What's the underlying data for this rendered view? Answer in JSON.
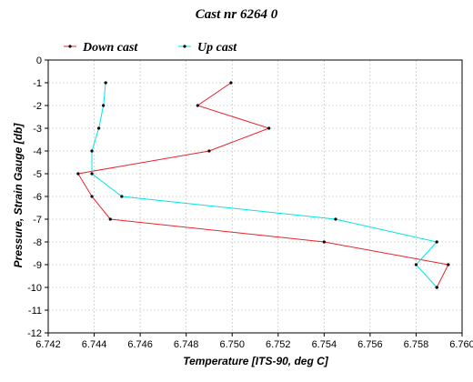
{
  "chart_data": {
    "type": "line",
    "title": "Cast nr 6264 0",
    "xlabel": "Temperature [ITS-90, deg C]",
    "ylabel": "Pressure, Strain Gauge [db]",
    "xlim": [
      6.742,
      6.76
    ],
    "ylim": [
      -12,
      0
    ],
    "x_ticks": [
      "6.742",
      "6.744",
      "6.746",
      "6.748",
      "6.750",
      "6.752",
      "6.754",
      "6.756",
      "6.758",
      "6.760"
    ],
    "y_ticks": [
      "0",
      "-1",
      "-2",
      "-3",
      "-4",
      "-5",
      "-6",
      "-7",
      "-8",
      "-9",
      "-10",
      "-11",
      "-12"
    ],
    "legend_position": "top-left",
    "grid": true,
    "series": [
      {
        "name": "Down cast",
        "color": "#e8232b",
        "points": [
          [
            6.74995,
            -1
          ],
          [
            6.7485,
            -2
          ],
          [
            6.7516,
            -3
          ],
          [
            6.749,
            -4
          ],
          [
            6.7433,
            -5
          ],
          [
            6.7439,
            -6
          ],
          [
            6.7447,
            -7
          ],
          [
            6.754,
            -8
          ],
          [
            6.7594,
            -9
          ],
          [
            6.7589,
            -10
          ]
        ]
      },
      {
        "name": "Up cast",
        "color": "#00e5e5",
        "points": [
          [
            6.7445,
            -1
          ],
          [
            6.7444,
            -2
          ],
          [
            6.7442,
            -3
          ],
          [
            6.7439,
            -4
          ],
          [
            6.7439,
            -5
          ],
          [
            6.7452,
            -6
          ],
          [
            6.7545,
            -7
          ],
          [
            6.7589,
            -8
          ],
          [
            6.758,
            -9
          ],
          [
            6.7589,
            -10
          ]
        ]
      }
    ]
  }
}
